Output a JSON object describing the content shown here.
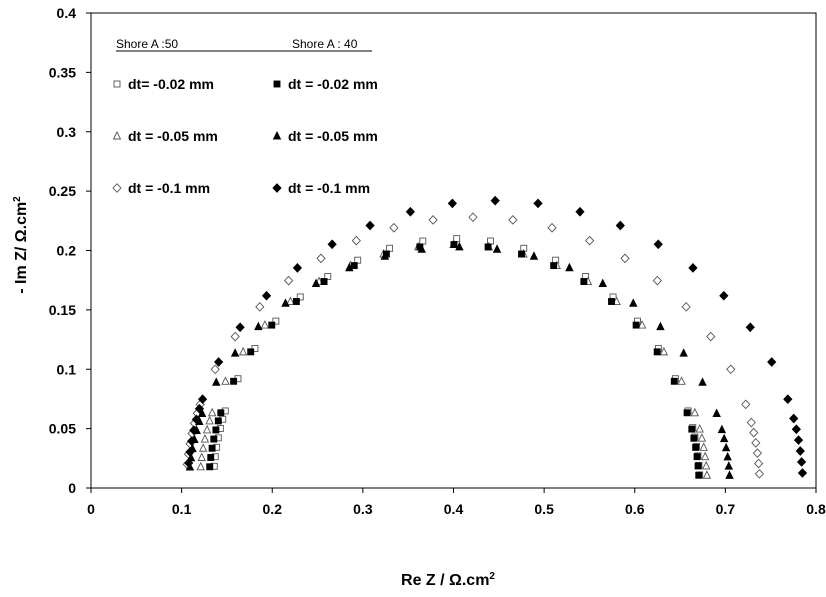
{
  "chart_data": {
    "type": "scatter",
    "title": "",
    "xlabel": "Re Z / Ω.cm",
    "xlabel_sup": "2",
    "ylabel": "- Im Z/ Ω.cm",
    "ylabel_sup": "2",
    "xlim": [
      0,
      0.8
    ],
    "ylim": [
      0,
      0.4
    ],
    "x_ticks": [
      "0",
      "0.1",
      "0.2",
      "0.3",
      "0.4",
      "0.5",
      "0.6",
      "0.7",
      "0.8"
    ],
    "y_ticks": [
      "0",
      "0.05",
      "0.1",
      "0.15",
      "0.2",
      "0.25",
      "0.3",
      "0.35",
      "0.4"
    ],
    "grid": false,
    "legend_position": "top-left",
    "legend_groups": [
      "Shore A :50",
      "Shore A : 40"
    ],
    "series": [
      {
        "name": "dt= -0.02 mm",
        "group": "Shore A :50",
        "marker": "open-square",
        "center": 0.4035,
        "radius": 0.2685,
        "max": 0.21
      },
      {
        "name": "dt = -0.05 mm",
        "group": "Shore A :50",
        "marker": "open-triangle",
        "center": 0.4,
        "radius": 0.28,
        "max": 0.205
      },
      {
        "name": "dt = -0.1 mm",
        "group": "Shore A :50",
        "marker": "open-diamond",
        "center": 0.4215,
        "radius": 0.3165,
        "max": 0.228
      },
      {
        "name": "dt = -0.02 mm",
        "group": "Shore A : 40",
        "marker": "filled-square",
        "center": 0.4005,
        "radius": 0.2705,
        "max": 0.205
      },
      {
        "name": "dt = -0.05 mm",
        "group": "Shore A : 40",
        "marker": "filled-triangle",
        "center": 0.4065,
        "radius": 0.2985,
        "max": 0.203
      },
      {
        "name": "dt = -0.1 mm",
        "group": "Shore A : 40",
        "marker": "filled-diamond",
        "center": 0.446,
        "radius": 0.3395,
        "max": 0.242
      }
    ]
  }
}
